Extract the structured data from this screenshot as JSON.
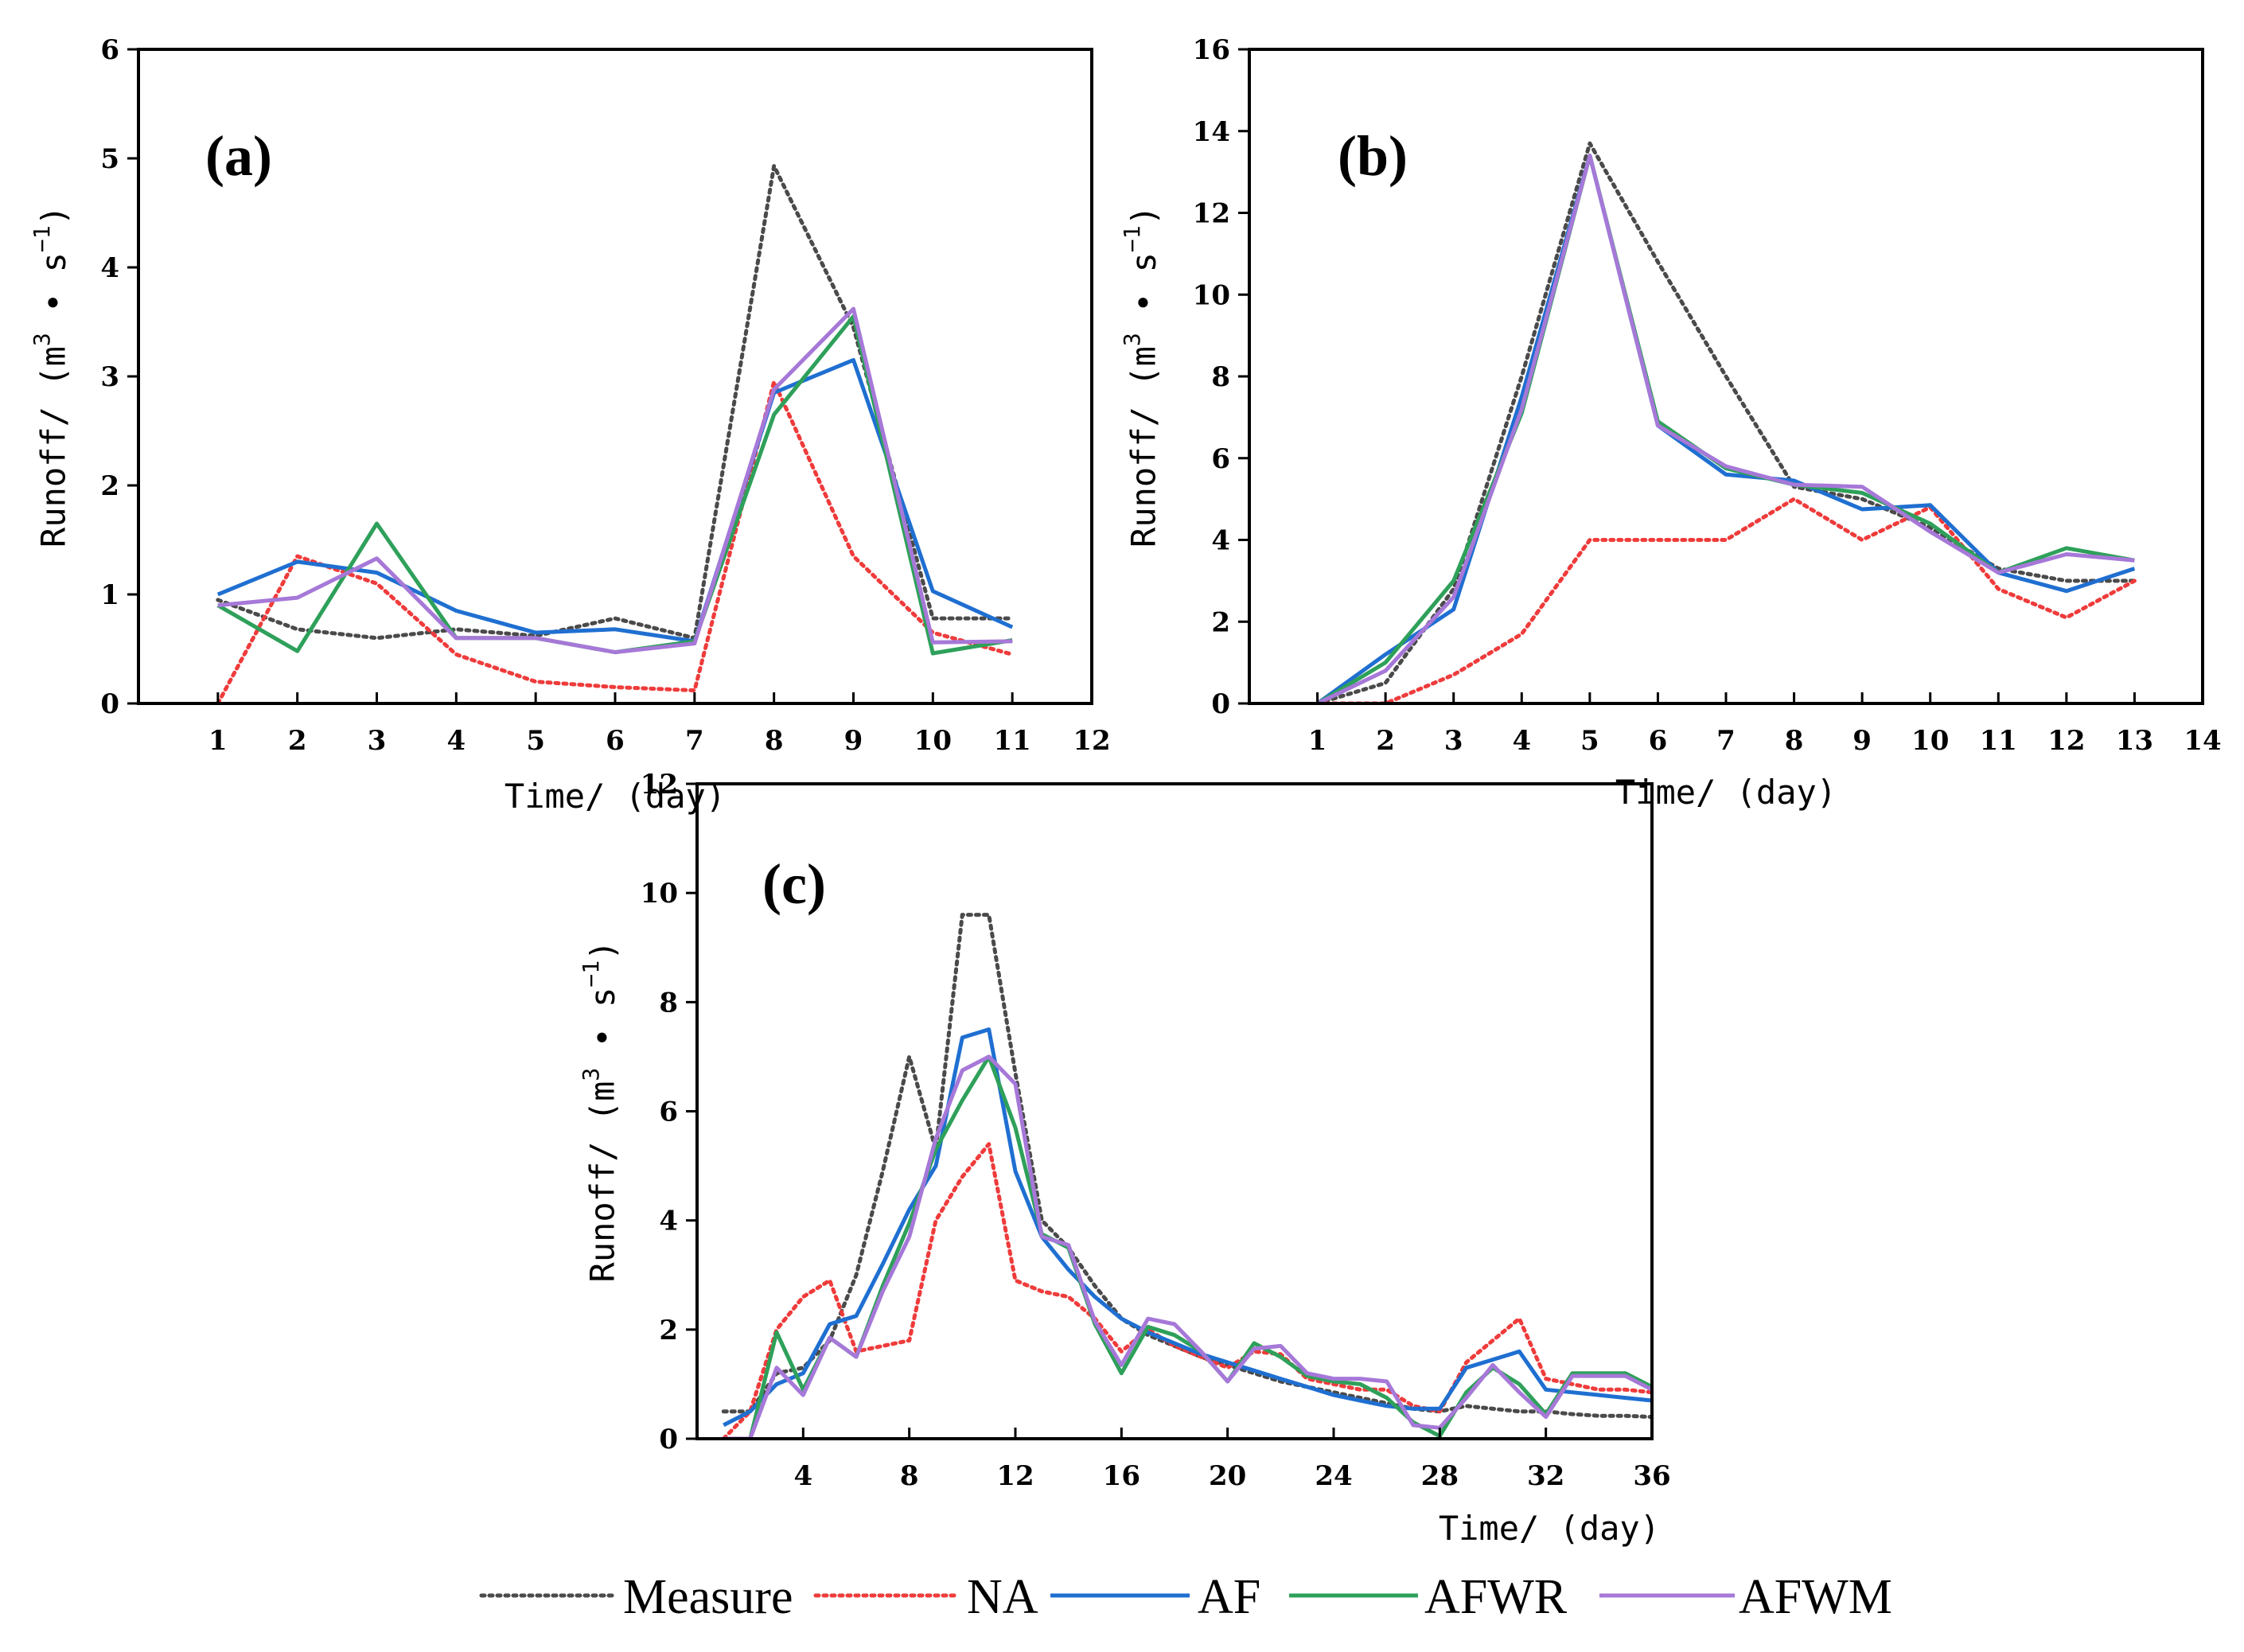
{
  "colors": {
    "Measure": "#4a4a4a",
    "NA": "#ef3b3b",
    "AF": "#1f6fd1",
    "AFWR": "#2ea05a",
    "AFWM": "#a678d8"
  },
  "legend": {
    "items": [
      {
        "label": "Measure",
        "style": "dotted"
      },
      {
        "label": "NA",
        "style": "dotted"
      },
      {
        "label": "AF",
        "style": "solid"
      },
      {
        "label": "AFWR",
        "style": "solid"
      },
      {
        "label": "AFWM",
        "style": "solid"
      }
    ]
  },
  "chart_data": [
    {
      "type": "line",
      "panel": "(a)",
      "xlabel": "Time/ (day)",
      "ylabel": "Runoff/ (m3 · s-1)",
      "xlim": [
        0,
        12
      ],
      "ylim": [
        0,
        6
      ],
      "xticks": [
        1,
        2,
        3,
        4,
        5,
        6,
        7,
        8,
        9,
        10,
        11,
        12
      ],
      "yticks": [
        0,
        1,
        2,
        3,
        4,
        5,
        6
      ],
      "x": [
        1,
        2,
        3,
        4,
        5,
        6,
        7,
        8,
        9,
        10,
        11
      ],
      "series": [
        {
          "name": "Measure",
          "style": "dotted",
          "values": [
            0.95,
            0.68,
            0.6,
            0.68,
            0.62,
            0.78,
            0.6,
            4.93,
            3.45,
            0.78,
            0.78
          ]
        },
        {
          "name": "NA",
          "style": "dotted",
          "values": [
            0.0,
            1.35,
            1.1,
            0.45,
            0.2,
            0.15,
            0.12,
            2.95,
            1.35,
            0.65,
            0.45
          ]
        },
        {
          "name": "AF",
          "style": "solid",
          "values": [
            1.0,
            1.3,
            1.2,
            0.85,
            0.65,
            0.68,
            0.57,
            2.85,
            3.15,
            1.03,
            0.7
          ]
        },
        {
          "name": "AFWR",
          "style": "solid",
          "values": [
            0.9,
            0.48,
            1.65,
            0.6,
            0.6,
            0.47,
            0.57,
            2.65,
            3.55,
            0.46,
            0.58
          ]
        },
        {
          "name": "AFWM",
          "style": "solid",
          "values": [
            0.9,
            0.97,
            1.33,
            0.6,
            0.6,
            0.47,
            0.55,
            2.88,
            3.62,
            0.56,
            0.57
          ]
        }
      ]
    },
    {
      "type": "line",
      "panel": "(b)",
      "xlabel": "Time/ (day)",
      "ylabel": "Runoff/ (m3 · s-1)",
      "xlim": [
        0,
        14
      ],
      "ylim": [
        0,
        16
      ],
      "xticks": [
        1,
        2,
        3,
        4,
        5,
        6,
        7,
        8,
        9,
        10,
        11,
        12,
        13,
        14
      ],
      "yticks": [
        0,
        2,
        4,
        6,
        8,
        10,
        12,
        14,
        16
      ],
      "x": [
        1,
        2,
        3,
        4,
        5,
        6,
        7,
        8,
        9,
        10,
        11,
        12,
        13
      ],
      "series": [
        {
          "name": "Measure",
          "style": "dotted",
          "values": [
            0.0,
            0.5,
            2.8,
            8.0,
            13.7,
            10.8,
            8.0,
            5.3,
            5.0,
            4.3,
            3.3,
            3.0,
            3.0
          ]
        },
        {
          "name": "NA",
          "style": "dotted",
          "values": [
            0.0,
            0.0,
            0.7,
            1.7,
            4.0,
            4.0,
            4.0,
            5.0,
            4.0,
            4.8,
            2.8,
            2.1,
            3.0
          ]
        },
        {
          "name": "AF",
          "style": "solid",
          "values": [
            0.0,
            1.2,
            2.3,
            7.5,
            13.4,
            6.8,
            5.6,
            5.45,
            4.75,
            4.85,
            3.2,
            2.75,
            3.3
          ]
        },
        {
          "name": "AFWR",
          "style": "solid",
          "values": [
            0.0,
            1.0,
            3.0,
            7.1,
            13.4,
            6.9,
            5.75,
            5.35,
            5.15,
            4.4,
            3.2,
            3.8,
            3.5
          ]
        },
        {
          "name": "AFWM",
          "style": "solid",
          "values": [
            0.0,
            0.8,
            2.6,
            7.2,
            13.4,
            6.8,
            5.8,
            5.35,
            5.3,
            4.2,
            3.2,
            3.65,
            3.5
          ]
        }
      ]
    },
    {
      "type": "line",
      "panel": "(c)",
      "xlabel": "Time/ (day)",
      "ylabel": "Runoff/ (m3 · s-1)",
      "xlim": [
        0,
        36
      ],
      "ylim": [
        0,
        12
      ],
      "xticks": [
        4,
        8,
        12,
        16,
        20,
        24,
        28,
        32,
        36
      ],
      "yticks": [
        0,
        2,
        4,
        6,
        8,
        10,
        12
      ],
      "x": [
        1,
        2,
        3,
        4,
        5,
        6,
        7,
        8,
        9,
        10,
        11,
        12,
        13,
        14,
        15,
        16,
        17,
        18,
        19,
        20,
        21,
        22,
        23,
        24,
        25,
        26,
        27,
        28,
        29,
        30,
        31,
        32,
        33,
        34,
        35,
        36
      ],
      "series": [
        {
          "name": "Measure",
          "style": "dotted",
          "values": [
            0.5,
            0.5,
            1.2,
            1.3,
            1.8,
            3.0,
            4.9,
            7.0,
            5.3,
            9.6,
            9.6,
            6.7,
            4.0,
            3.5,
            2.8,
            2.2,
            1.9,
            1.7,
            1.5,
            1.35,
            1.2,
            1.05,
            0.95,
            0.85,
            0.75,
            0.65,
            0.55,
            0.5,
            0.6,
            0.55,
            0.5,
            0.5,
            0.45,
            0.42,
            0.42,
            0.4
          ]
        },
        {
          "name": "NA",
          "style": "dotted",
          "values": [
            0.0,
            0.5,
            2.0,
            2.6,
            2.9,
            1.6,
            1.7,
            1.8,
            4.0,
            4.8,
            5.4,
            2.9,
            2.7,
            2.6,
            2.2,
            1.6,
            2.0,
            1.7,
            1.5,
            1.3,
            1.6,
            1.55,
            1.1,
            1.0,
            0.9,
            0.9,
            0.6,
            0.5,
            1.4,
            1.8,
            2.2,
            1.1,
            1.0,
            0.9,
            0.9,
            0.85
          ]
        },
        {
          "name": "AF",
          "style": "solid",
          "values": [
            0.25,
            0.5,
            1.0,
            1.2,
            2.1,
            2.25,
            3.2,
            4.2,
            5.0,
            7.35,
            7.5,
            4.9,
            3.7,
            3.1,
            2.6,
            2.2,
            1.95,
            1.75,
            1.55,
            1.4,
            1.25,
            1.1,
            0.95,
            0.8,
            0.7,
            0.6,
            0.55,
            0.55,
            1.3,
            1.45,
            1.6,
            0.9,
            0.85,
            0.8,
            0.75,
            0.7
          ]
        },
        {
          "name": "AFWR",
          "style": "solid",
          "values": [
            0.0,
            0.0,
            1.95,
            0.9,
            1.85,
            1.5,
            2.8,
            3.95,
            5.3,
            6.2,
            7.0,
            5.7,
            3.75,
            3.5,
            2.1,
            1.2,
            2.05,
            1.9,
            1.6,
            1.05,
            1.75,
            1.5,
            1.15,
            1.05,
            1.0,
            0.75,
            0.3,
            0.05,
            0.85,
            1.3,
            1.0,
            0.45,
            1.2,
            1.2,
            1.2,
            0.95
          ]
        },
        {
          "name": "AFWM",
          "style": "solid",
          "values": [
            0.0,
            0.0,
            1.3,
            0.8,
            1.85,
            1.5,
            2.7,
            3.7,
            5.5,
            6.75,
            7.0,
            6.5,
            3.7,
            3.55,
            2.15,
            1.35,
            2.2,
            2.1,
            1.6,
            1.05,
            1.65,
            1.7,
            1.2,
            1.1,
            1.1,
            1.05,
            0.25,
            0.2,
            0.75,
            1.35,
            0.85,
            0.4,
            1.15,
            1.15,
            1.15,
            0.9
          ]
        }
      ]
    }
  ]
}
